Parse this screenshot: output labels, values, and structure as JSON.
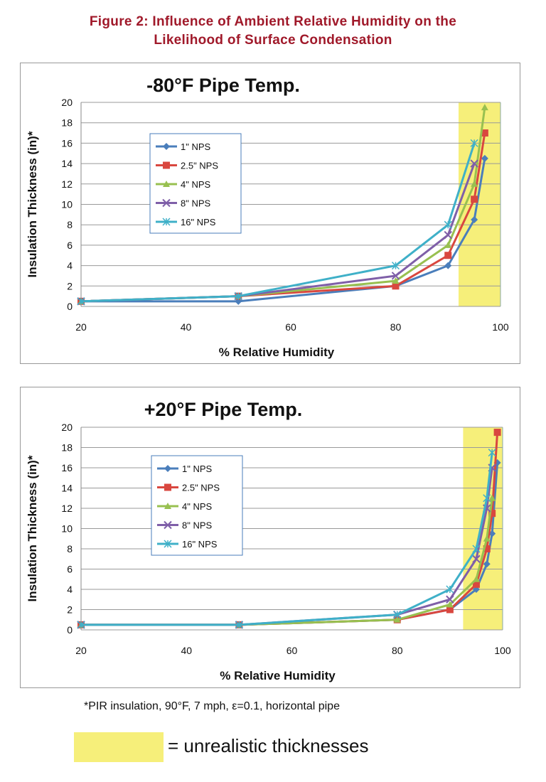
{
  "figure_title_line1": "Figure 2: Influence of Ambient Relative Humidity on the",
  "figure_title_line2": "Likelihood of Surface Condensation",
  "footnote": "*PIR insulation, 90°F, 7 mph, ε=0.1, horizontal pipe",
  "key": {
    "label": "= unrealistic thicknesses",
    "color": "#f6ef7a"
  },
  "chart_data": [
    {
      "type": "line",
      "title": "-80°F Pipe Temp.",
      "xlabel": "% Relative Humidity",
      "ylabel": "Insulation Thickness (in)*",
      "xlim": [
        20,
        100
      ],
      "ylim": [
        0,
        20
      ],
      "xticks": [
        20,
        40,
        60,
        80,
        100
      ],
      "yticks": [
        0,
        2,
        4,
        6,
        8,
        10,
        12,
        14,
        16,
        18,
        20
      ],
      "grid": "horizontal",
      "legend_position": "upper-left",
      "shaded_region": {
        "x": [
          92,
          100
        ],
        "color": "#f6ef7a"
      },
      "series": [
        {
          "name": "1\" NPS",
          "color": "#4a7ebb",
          "marker": "diamond",
          "x": [
            20,
            50,
            80,
            90,
            95,
            97
          ],
          "y": [
            0.5,
            0.5,
            2,
            4,
            8.5,
            14.5
          ]
        },
        {
          "name": "2.5\" NPS",
          "color": "#d9473f",
          "marker": "square",
          "x": [
            20,
            50,
            80,
            90,
            95,
            97
          ],
          "y": [
            0.5,
            1,
            2,
            5,
            10.5,
            17
          ]
        },
        {
          "name": "4\" NPS",
          "color": "#98c050",
          "marker": "triangle",
          "x": [
            20,
            50,
            80,
            90,
            95,
            97
          ],
          "y": [
            0.5,
            1,
            2.5,
            6,
            12,
            19.5
          ]
        },
        {
          "name": "8\" NPS",
          "color": "#7f5fa8",
          "marker": "x",
          "x": [
            20,
            50,
            80,
            90,
            95
          ],
          "y": [
            0.5,
            1,
            3,
            7,
            14
          ]
        },
        {
          "name": "16\" NPS",
          "color": "#3fb0c8",
          "marker": "star",
          "x": [
            20,
            50,
            80,
            90,
            95
          ],
          "y": [
            0.5,
            1,
            4,
            8,
            16
          ]
        }
      ]
    },
    {
      "type": "line",
      "title": "+20°F Pipe Temp.",
      "xlabel": "% Relative Humidity",
      "ylabel": "Insulation Thickness (in)*",
      "xlim": [
        20,
        100
      ],
      "ylim": [
        0,
        20
      ],
      "xticks": [
        20,
        40,
        60,
        80,
        100
      ],
      "yticks": [
        0,
        2,
        4,
        6,
        8,
        10,
        12,
        14,
        16,
        18,
        20
      ],
      "grid": "horizontal",
      "legend_position": "upper-left",
      "shaded_region": {
        "x": [
          92.5,
          100
        ],
        "color": "#f6ef7a"
      },
      "series": [
        {
          "name": "1\" NPS",
          "color": "#4a7ebb",
          "marker": "diamond",
          "x": [
            20,
            50,
            80,
            90,
            95,
            97,
            98,
            99
          ],
          "y": [
            0.5,
            0.5,
            1,
            2,
            4,
            6.5,
            9.5,
            16.5
          ]
        },
        {
          "name": "2.5\" NPS",
          "color": "#d9473f",
          "marker": "square",
          "x": [
            20,
            50,
            80,
            90,
            95,
            97,
            98,
            99
          ],
          "y": [
            0.5,
            0.5,
            1,
            2,
            4.5,
            8,
            11.5,
            19.5
          ]
        },
        {
          "name": "4\" NPS",
          "color": "#98c050",
          "marker": "triangle",
          "x": [
            20,
            50,
            80,
            90,
            95,
            97,
            98
          ],
          "y": [
            0.5,
            0.5,
            1,
            2.5,
            5,
            9,
            13
          ]
        },
        {
          "name": "8\" NPS",
          "color": "#7f5fa8",
          "marker": "x",
          "x": [
            20,
            50,
            80,
            90,
            95,
            97,
            98
          ],
          "y": [
            0.5,
            0.5,
            1.5,
            3,
            7,
            12,
            16
          ]
        },
        {
          "name": "16\" NPS",
          "color": "#3fb0c8",
          "marker": "star",
          "x": [
            20,
            50,
            80,
            90,
            95,
            97,
            98
          ],
          "y": [
            0.5,
            0.5,
            1.5,
            4,
            8,
            13,
            17.5
          ]
        }
      ]
    }
  ]
}
